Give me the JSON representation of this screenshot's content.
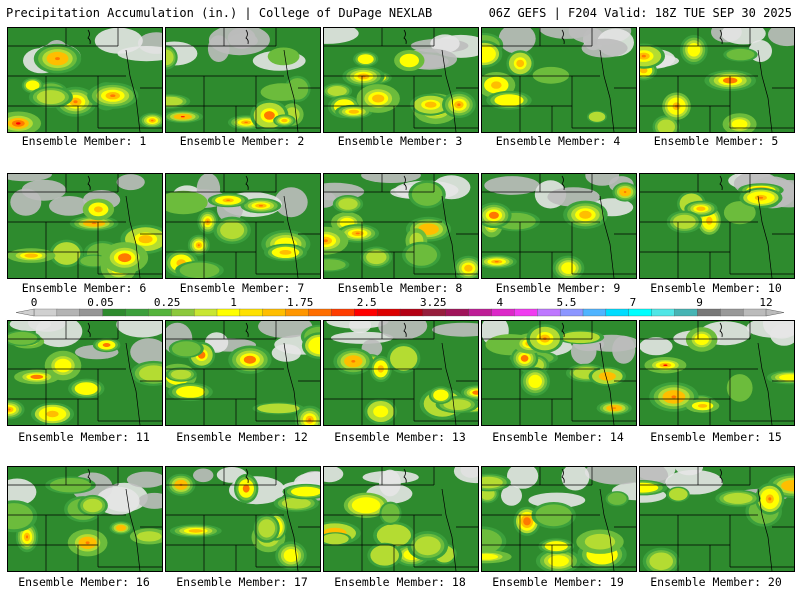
{
  "header": {
    "title_left": "Precipitation Accumulation (in.) | College of DuPage NEXLAB",
    "title_right": "06Z GEFS | F204 Valid: 18Z TUE SEP 30 2025"
  },
  "caption_prefix": "Ensemble Member: ",
  "members": [
    "1",
    "2",
    "3",
    "4",
    "5",
    "6",
    "7",
    "8",
    "9",
    "10",
    "11",
    "12",
    "13",
    "14",
    "15",
    "16",
    "17",
    "18",
    "19",
    "20"
  ],
  "colorbar": {
    "labels": [
      "0",
      "0.05",
      "0.25",
      "1",
      "1.75",
      "2.5",
      "3.25",
      "4",
      "5.5",
      "7",
      "9",
      "12"
    ],
    "colors": [
      "#d0d0d0",
      "#b4b4b4",
      "#969696",
      "#2e8b2e",
      "#3ca03c",
      "#55b43c",
      "#8cc83c",
      "#c8e632",
      "#ffff00",
      "#ffe100",
      "#ffbe00",
      "#ff9600",
      "#ff6e00",
      "#ff3c00",
      "#ff0000",
      "#dc0000",
      "#b40014",
      "#961e3c",
      "#a0145a",
      "#be1e96",
      "#dc28c8",
      "#f03cf0",
      "#be78ff",
      "#8c96ff",
      "#50b4ff",
      "#00dcff",
      "#00ffff",
      "#50e6e6",
      "#46b4b4",
      "#787878",
      "#999999",
      "#bbbbbb"
    ]
  }
}
